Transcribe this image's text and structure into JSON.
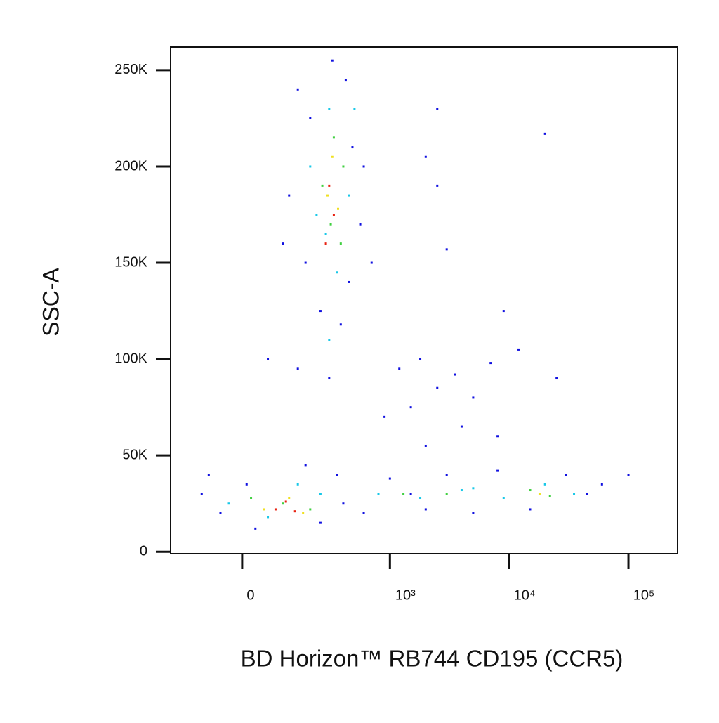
{
  "chart_data": {
    "type": "scatter",
    "xlabel": "BD Horizon™ RB744 CD195 (CCR5)",
    "ylabel": "SSC-A",
    "xscale": "asinh",
    "xlim": [
      -216,
      258000
    ],
    "xticks": [
      0,
      {
        "value": 1000,
        "label": "10³"
      },
      {
        "value": 10000,
        "label": "10⁴"
      },
      {
        "value": 100000,
        "label": "10⁵"
      }
    ],
    "ylim": [
      -1000,
      262000
    ],
    "yticks": [
      0,
      {
        "value": 50000,
        "label": "50K"
      },
      {
        "value": 100000,
        "label": "100K"
      },
      {
        "value": 150000,
        "label": "150K"
      },
      {
        "value": 200000,
        "label": "200K"
      },
      {
        "value": 250000,
        "label": "250K"
      }
    ],
    "series": [
      {
        "color": "#1010e0",
        "x": [
          150,
          420,
          200,
          480,
          120,
          560,
          180,
          450,
          250,
          380,
          100,
          600,
          320,
          700,
          60,
          150,
          300,
          1200,
          1800,
          2500,
          3500,
          5000,
          7000,
          1500,
          900,
          4000,
          8000,
          2000,
          12000,
          25000,
          -100,
          -50,
          30,
          250,
          350,
          -80,
          180,
          10,
          400,
          600,
          1000,
          2000,
          3000,
          5000,
          8000,
          15000,
          30000,
          45000,
          60000,
          100000,
          1500,
          2500,
          2000,
          20000,
          3000,
          9000,
          2500
        ],
        "y": [
          240000,
          245000,
          225000,
          210000,
          185000,
          170000,
          150000,
          140000,
          125000,
          118000,
          160000,
          200000,
          255000,
          150000,
          100000,
          95000,
          90000,
          95000,
          100000,
          85000,
          92000,
          80000,
          98000,
          75000,
          70000,
          65000,
          60000,
          55000,
          105000,
          90000,
          30000,
          20000,
          12000,
          15000,
          40000,
          40000,
          45000,
          35000,
          25000,
          20000,
          38000,
          22000,
          40000,
          20000,
          42000,
          22000,
          40000,
          30000,
          35000,
          40000,
          30000,
          230000,
          205000,
          217000,
          157000,
          125000,
          190000
        ]
      },
      {
        "color": "#18c8e8",
        "x": [
          300,
          200,
          450,
          280,
          350,
          500,
          230,
          -30,
          150,
          60,
          250,
          800,
          1800,
          4000,
          9000,
          20000,
          35000,
          300,
          5000
        ],
        "y": [
          230000,
          200000,
          185000,
          165000,
          145000,
          230000,
          175000,
          25000,
          35000,
          18000,
          30000,
          30000,
          28000,
          32000,
          28000,
          35000,
          30000,
          110000,
          33000
        ]
      },
      {
        "color": "#40d040",
        "x": [
          330,
          260,
          400,
          310,
          380,
          20,
          100,
          200,
          1300,
          3000,
          15000,
          22000
        ],
        "y": [
          215000,
          190000,
          200000,
          170000,
          160000,
          28000,
          25000,
          22000,
          30000,
          30000,
          32000,
          29000
        ]
      },
      {
        "color": "#f0e020",
        "x": [
          320,
          290,
          360,
          50,
          120,
          170,
          18000
        ],
        "y": [
          205000,
          185000,
          178000,
          22000,
          28000,
          20000,
          30000
        ]
      },
      {
        "color": "#e82010",
        "x": [
          300,
          330,
          280,
          80,
          140,
          110
        ],
        "y": [
          190000,
          175000,
          160000,
          22000,
          21000,
          26000
        ]
      }
    ]
  }
}
